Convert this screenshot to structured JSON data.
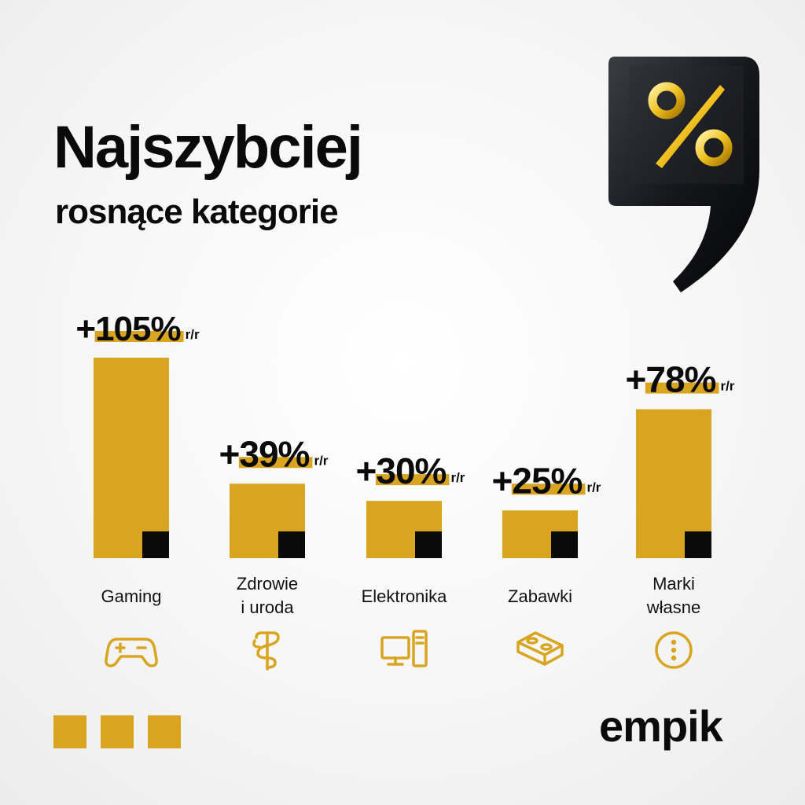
{
  "title": {
    "line1": "Najszybciej",
    "line2": "rosnące kategorie"
  },
  "chart_data": {
    "type": "bar",
    "categories": [
      "Gaming",
      "Zdrowie i uroda",
      "Elektronika",
      "Zabawki",
      "Marki własne"
    ],
    "category_lines": [
      [
        "Gaming"
      ],
      [
        "Zdrowie",
        "i uroda"
      ],
      [
        "Elektronika"
      ],
      [
        "Zabawki"
      ],
      [
        "Marki",
        "własne"
      ]
    ],
    "values": [
      105,
      39,
      30,
      25,
      78
    ],
    "value_labels": [
      "+105%",
      "+39%",
      "+30%",
      "+25%",
      "+78%"
    ],
    "value_suffix": "r/r",
    "icons": [
      "gamepad-icon",
      "health-symbol-icon",
      "computer-icon",
      "toy-brick-icon",
      "more-dots-icon"
    ],
    "colors": {
      "bar": "#d9a521",
      "accent": "#0a0a0a"
    },
    "title": "Najszybciej rosnące kategorie",
    "xlabel": "",
    "ylabel": "",
    "grid": false
  },
  "brand": {
    "logo": "empik"
  }
}
